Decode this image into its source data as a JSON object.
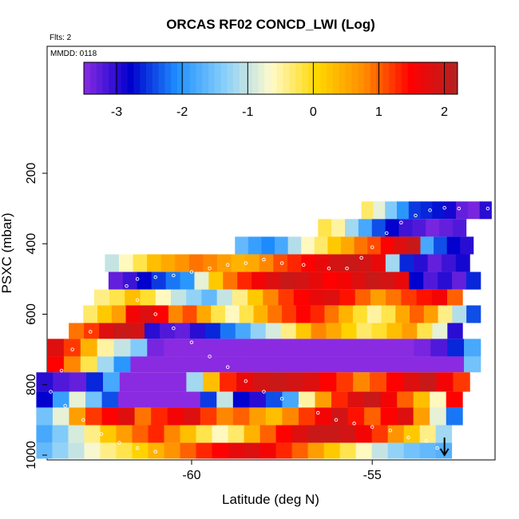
{
  "chart_data": {
    "type": "heatmap",
    "title": "ORCAS RF02 CONCD_LWI (Log)",
    "flights_note": "Flts: 2",
    "date_note": "MMDD: 0118",
    "xlabel": "Latitude (deg N)",
    "ylabel": "PSXC (mbar)",
    "x_ticks": [
      "-60",
      "-55"
    ],
    "y_ticks": [
      "200",
      "400",
      "600",
      "800",
      "1000"
    ],
    "xlim": [
      -64.0,
      -51.6
    ],
    "ylim": [
      1010,
      0
    ],
    "grid": false,
    "colorbar": {
      "range": [
        -3.5,
        2.2
      ],
      "ticks": [
        "-3",
        "-2",
        "-1",
        "0",
        "1",
        "2"
      ],
      "colors": [
        "#8a2be2",
        "#0000cd",
        "#1e90ff",
        "#87cefa",
        "#fffacd",
        "#ffd700",
        "#ff8c00",
        "#ff0000",
        "#b22222"
      ]
    },
    "rows": [
      {
        "p_top": 280,
        "p_bot": 330,
        "x0": -55.3,
        "x1": -51.7,
        "values": [
          -0.3,
          -0.8,
          -1.4,
          -2.0,
          -2.5,
          -2.6,
          -2.7,
          -2.9,
          -3.3,
          -3.4,
          -3.0
        ]
      },
      {
        "p_top": 330,
        "p_bot": 380,
        "x0": -56.5,
        "x1": -52.4,
        "values": [
          -0.2,
          -0.5,
          -1.2,
          -1.8,
          -2.4,
          -2.8,
          -3.1,
          -3.2,
          -3.4,
          -3.3,
          -3.2
        ]
      },
      {
        "p_top": 380,
        "p_bot": 430,
        "x0": -58.8,
        "x1": -52.2,
        "values": [
          -1.6,
          -1.9,
          -2.1,
          -1.8,
          -1.1,
          -0.6,
          -0.3,
          0.2,
          0.5,
          0.9,
          1.1,
          1.5,
          1.8,
          2.0,
          -1.8,
          -2.4,
          -2.8,
          -3.0
        ]
      },
      {
        "p_top": 430,
        "p_bot": 480,
        "x0": -62.4,
        "x1": -52.3,
        "values": [
          -1.0,
          -0.6,
          -0.2,
          0.3,
          0.5,
          0.7,
          0.9,
          0.8,
          0.6,
          0.4,
          0.5,
          0.8,
          1.1,
          1.3,
          1.5,
          1.7,
          1.9,
          2.0,
          1.9,
          1.7,
          -1.2,
          -2.6,
          -3.0,
          -3.3,
          -3.1,
          -2.9
        ]
      },
      {
        "p_top": 480,
        "p_bot": 530,
        "x0": -62.3,
        "x1": -52.0,
        "values": [
          -3.3,
          -3.1,
          -2.8,
          -2.5,
          -2.2,
          -2.0,
          -0.8,
          0.2,
          0.9,
          1.3,
          1.6,
          1.8,
          2.0,
          1.9,
          1.7,
          1.5,
          1.6,
          1.8,
          2.0,
          1.9,
          1.7,
          -2.8,
          -3.2,
          -3.0,
          -3.3,
          -2.6
        ]
      },
      {
        "p_top": 530,
        "p_bot": 575,
        "x0": -62.7,
        "x1": -52.5,
        "values": [
          -0.4,
          -0.2,
          0.3,
          -0.1,
          -0.6,
          -1.0,
          -1.3,
          -1.6,
          -1.0,
          -0.4,
          0.2,
          0.8,
          1.2,
          1.5,
          1.7,
          1.8,
          1.4,
          1.0,
          0.6,
          0.9,
          1.2,
          1.4,
          1.6,
          1.0
        ]
      },
      {
        "p_top": 575,
        "p_bot": 625,
        "x0": -63.0,
        "x1": -52.0,
        "values": [
          -0.3,
          0.2,
          0.6,
          1.6,
          1.8,
          1.5,
          0.8,
          1.1,
          0.5,
          -0.2,
          -0.6,
          -0.2,
          0.4,
          0.9,
          1.2,
          1.5,
          1.3,
          0.9,
          0.4,
          -0.1,
          -0.5,
          -0.2,
          0.5,
          1.0,
          0.6,
          -0.4,
          -1.1,
          -2.4
        ]
      },
      {
        "p_top": 625,
        "p_bot": 670,
        "x0": -63.4,
        "x1": -52.5,
        "values": [
          0.9,
          1.2,
          1.8,
          2.0,
          1.9,
          -3.0,
          -3.2,
          -3.3,
          -3.0,
          -2.6,
          -2.2,
          -1.8,
          -1.3,
          -0.9,
          -0.4,
          0.2,
          0.8,
          0.5,
          0.1,
          -0.3,
          -0.1,
          0.3,
          0.6,
          -0.2,
          -0.8,
          -3.0
        ]
      },
      {
        "p_top": 670,
        "p_bot": 720,
        "x0": -64.0,
        "x1": -52.0,
        "values": [
          1.8,
          1.2,
          0.4,
          -0.5,
          -1.0,
          -1.4,
          -3.4,
          -3.5,
          -3.5,
          -3.5,
          -3.5,
          -3.5,
          -3.5,
          -3.5,
          -3.5,
          -3.5,
          -3.5,
          -3.5,
          -3.5,
          -3.5,
          -3.5,
          -3.5,
          -3.4,
          -3.2,
          -2.6,
          -1.8
        ]
      },
      {
        "p_top": 720,
        "p_bot": 765,
        "x0": -64.0,
        "x1": -52.0,
        "values": [
          1.5,
          0.8,
          -0.2,
          -1.2,
          -2.0,
          -3.5,
          -3.5,
          -3.5,
          -3.5,
          -3.5,
          -3.5,
          -3.5,
          -3.5,
          -3.5,
          -3.5,
          -3.5,
          -3.5,
          -3.5,
          -3.5,
          -3.5,
          -3.5,
          -3.5,
          -3.5,
          -3.5,
          -3.5,
          -1.5
        ]
      },
      {
        "p_top": 765,
        "p_bot": 820,
        "x0": -64.3,
        "x1": -52.3,
        "values": [
          -3.0,
          -3.2,
          -3.3,
          -2.6,
          -1.8,
          -3.5,
          -3.5,
          -3.5,
          -3.5,
          -1.2,
          0.3,
          1.3,
          1.7,
          1.9,
          2.0,
          1.9,
          1.8,
          1.5,
          1.2,
          0.8,
          1.1,
          1.5,
          1.8,
          2.0,
          1.6,
          1.2
        ]
      },
      {
        "p_top": 820,
        "p_bot": 865,
        "x0": -64.3,
        "x1": -52.5,
        "values": [
          -2.8,
          -1.9,
          -0.8,
          -1.5,
          -2.4,
          -3.5,
          -3.5,
          -3.5,
          -3.5,
          -3.5,
          -2.5,
          -1.0,
          -2.8,
          -3.0,
          -2.4,
          -1.8,
          -0.5,
          0.6,
          1.3,
          1.8,
          2.0,
          1.6,
          1.0,
          0.3,
          -0.6,
          1.5
        ]
      },
      {
        "p_top": 865,
        "p_bot": 915,
        "x0": -64.3,
        "x1": -52.5,
        "values": [
          -1.5,
          -0.8,
          0.6,
          1.2,
          1.5,
          1.8,
          0.9,
          1.3,
          1.6,
          1.8,
          1.2,
          0.8,
          1.0,
          0.6,
          0.3,
          0.8,
          1.2,
          1.6,
          1.9,
          1.4,
          1.0,
          1.5,
          1.8,
          0.6,
          -0.8,
          -2.2
        ]
      },
      {
        "p_top": 915,
        "p_bot": 965,
        "x0": -64.3,
        "x1": -52.8,
        "values": [
          -1.8,
          -1.4,
          -0.9,
          -0.4,
          0.2,
          0.6,
          1.0,
          1.3,
          0.8,
          0.3,
          -0.2,
          -0.6,
          -0.3,
          0.4,
          1.0,
          1.5,
          1.8,
          2.0,
          2.0,
          1.9,
          1.6,
          1.2,
          0.7,
          0.2,
          -0.4,
          -1.2
        ]
      },
      {
        "p_top": 965,
        "p_bot": 1010,
        "x0": -64.3,
        "x1": -52.8,
        "values": [
          -1.6,
          -1.3,
          -1.0,
          -0.7,
          -0.4,
          -0.2,
          0.1,
          0.4,
          0.7,
          1.0,
          1.3,
          1.5,
          1.7,
          1.8,
          1.6,
          1.3,
          1.0,
          0.6,
          0.2,
          -0.2,
          -0.6,
          -1.0,
          -1.3,
          -1.5,
          -1.6,
          -1.7
        ]
      }
    ],
    "track": [
      [
        -51.8,
        300
      ],
      [
        -52.6,
        300
      ],
      [
        -53.0,
        298
      ],
      [
        -53.4,
        305
      ],
      [
        -53.8,
        320
      ],
      [
        -54.2,
        340
      ],
      [
        -54.6,
        370
      ],
      [
        -55.0,
        410
      ],
      [
        -55.3,
        440
      ],
      [
        -55.7,
        470
      ],
      [
        -56.2,
        470
      ],
      [
        -56.9,
        460
      ],
      [
        -57.5,
        455
      ],
      [
        -58.0,
        445
      ],
      [
        -58.5,
        455
      ],
      [
        -59.0,
        460
      ],
      [
        -59.5,
        470
      ],
      [
        -60.0,
        480
      ],
      [
        -60.5,
        490
      ],
      [
        -61.0,
        495
      ],
      [
        -61.5,
        500
      ],
      [
        -61.8,
        520
      ],
      [
        -61.5,
        560
      ],
      [
        -61.0,
        600
      ],
      [
        -60.5,
        640
      ],
      [
        -60.0,
        680
      ],
      [
        -59.5,
        720
      ],
      [
        -59.0,
        750
      ],
      [
        -58.5,
        790
      ],
      [
        -58.0,
        820
      ],
      [
        -57.5,
        840
      ],
      [
        -57.0,
        860
      ],
      [
        -56.5,
        880
      ],
      [
        -56.0,
        900
      ],
      [
        -55.5,
        910
      ],
      [
        -55.0,
        920
      ],
      [
        -54.5,
        930
      ],
      [
        -54.0,
        950
      ],
      [
        -53.5,
        960
      ],
      [
        -53.2,
        980
      ],
      [
        -62.8,
        650
      ],
      [
        -63.3,
        700
      ],
      [
        -63.6,
        760
      ],
      [
        -63.9,
        820
      ],
      [
        -63.5,
        860
      ],
      [
        -63.0,
        900
      ],
      [
        -62.5,
        940
      ],
      [
        -62.0,
        965
      ],
      [
        -61.5,
        980
      ],
      [
        -61.0,
        990
      ]
    ],
    "arrow": {
      "x": -53.0,
      "p_from": 950,
      "p_to": 1000
    }
  }
}
